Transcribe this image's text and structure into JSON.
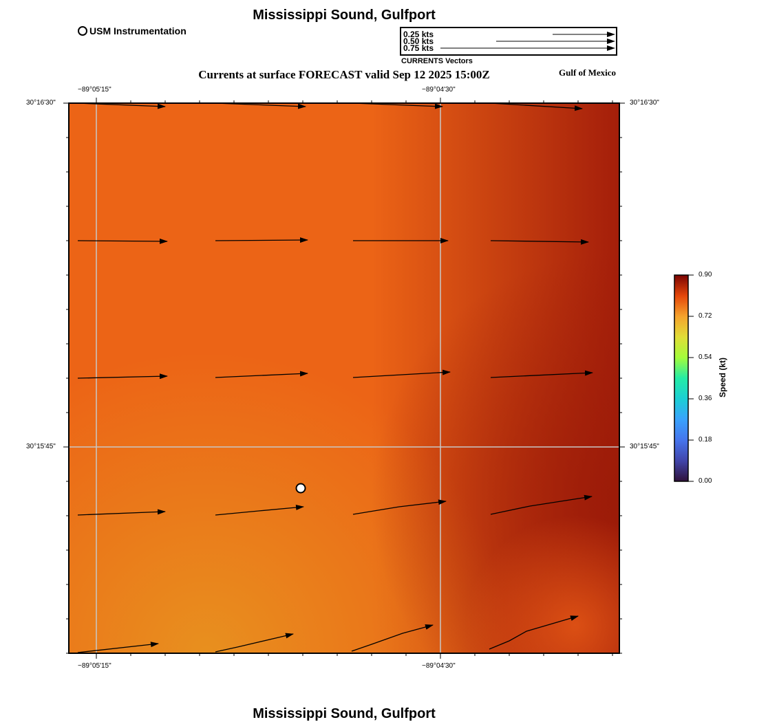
{
  "title": "Mississippi Sound, Gulfport",
  "footer_title": "Mississippi Sound, Gulfport",
  "subtitle": "Currents at surface FORECAST valid Sep 12 2025 15:00Z",
  "region": "Gulf of Mexico",
  "station_legend": {
    "label": "USM Instrumentation"
  },
  "vector_legend": {
    "caption": "CURRENTS Vectors",
    "entries": [
      {
        "label": "0.25 kts",
        "speed": 0.25
      },
      {
        "label": "0.50 kts",
        "speed": 0.5
      },
      {
        "label": "0.75 kts",
        "speed": 0.75
      }
    ]
  },
  "axes": {
    "top_lon": [
      "−89°05'15\"",
      "−89°04'30\""
    ],
    "bottom_lon": [
      "−89°05'15\"",
      "−89°04'30\""
    ],
    "left_lat": [
      "30°16'30\"",
      "30°15'45\""
    ],
    "right_lat": [
      "30°16'30\"",
      "30°15'45\""
    ]
  },
  "colorbar": {
    "title": "Speed (kt)",
    "ticks": [
      "0.90",
      "0.72",
      "0.54",
      "0.36",
      "0.18",
      "0.00"
    ],
    "min": 0.0,
    "max": 0.9
  },
  "colors": {
    "field_low": "#e8921f",
    "field_mid": "#ec6416",
    "field_high": "#a41e0a",
    "arrow": "#000000",
    "grid": "#c8c8c8"
  },
  "chart_data": {
    "type": "vector-field",
    "title": "Currents at surface FORECAST valid Sep 12 2025 15:00Z",
    "units": "kt",
    "station": "USM Instrumentation",
    "vectors": [
      {
        "row": 1,
        "col": 1,
        "u": 0.7,
        "v": -0.03
      },
      {
        "row": 1,
        "col": 2,
        "u": 0.7,
        "v": -0.02
      },
      {
        "row": 1,
        "col": 3,
        "u": 0.72,
        "v": -0.02
      },
      {
        "row": 1,
        "col": 4,
        "u": 0.74,
        "v": -0.04
      },
      {
        "row": 2,
        "col": 1,
        "u": 0.7,
        "v": 0.0
      },
      {
        "row": 2,
        "col": 2,
        "u": 0.71,
        "v": 0.0
      },
      {
        "row": 2,
        "col": 3,
        "u": 0.73,
        "v": 0.0
      },
      {
        "row": 2,
        "col": 4,
        "u": 0.76,
        "v": -0.01
      },
      {
        "row": 3,
        "col": 1,
        "u": 0.7,
        "v": 0.01
      },
      {
        "row": 3,
        "col": 2,
        "u": 0.72,
        "v": 0.03
      },
      {
        "row": 3,
        "col": 3,
        "u": 0.77,
        "v": 0.04
      },
      {
        "row": 3,
        "col": 4,
        "u": 0.8,
        "v": 0.04
      },
      {
        "row": 4,
        "col": 1,
        "u": 0.68,
        "v": 0.03
      },
      {
        "row": 4,
        "col": 2,
        "u": 0.7,
        "v": 0.06
      },
      {
        "row": 4,
        "col": 3,
        "u": 0.73,
        "v": 0.1
      },
      {
        "row": 4,
        "col": 4,
        "u": 0.8,
        "v": 0.13
      },
      {
        "row": 5,
        "col": 1,
        "u": 0.65,
        "v": 0.07
      },
      {
        "row": 5,
        "col": 2,
        "u": 0.62,
        "v": 0.14
      },
      {
        "row": 5,
        "col": 3,
        "u": 0.62,
        "v": 0.22
      },
      {
        "row": 5,
        "col": 4,
        "u": 0.67,
        "v": 0.28
      }
    ]
  }
}
